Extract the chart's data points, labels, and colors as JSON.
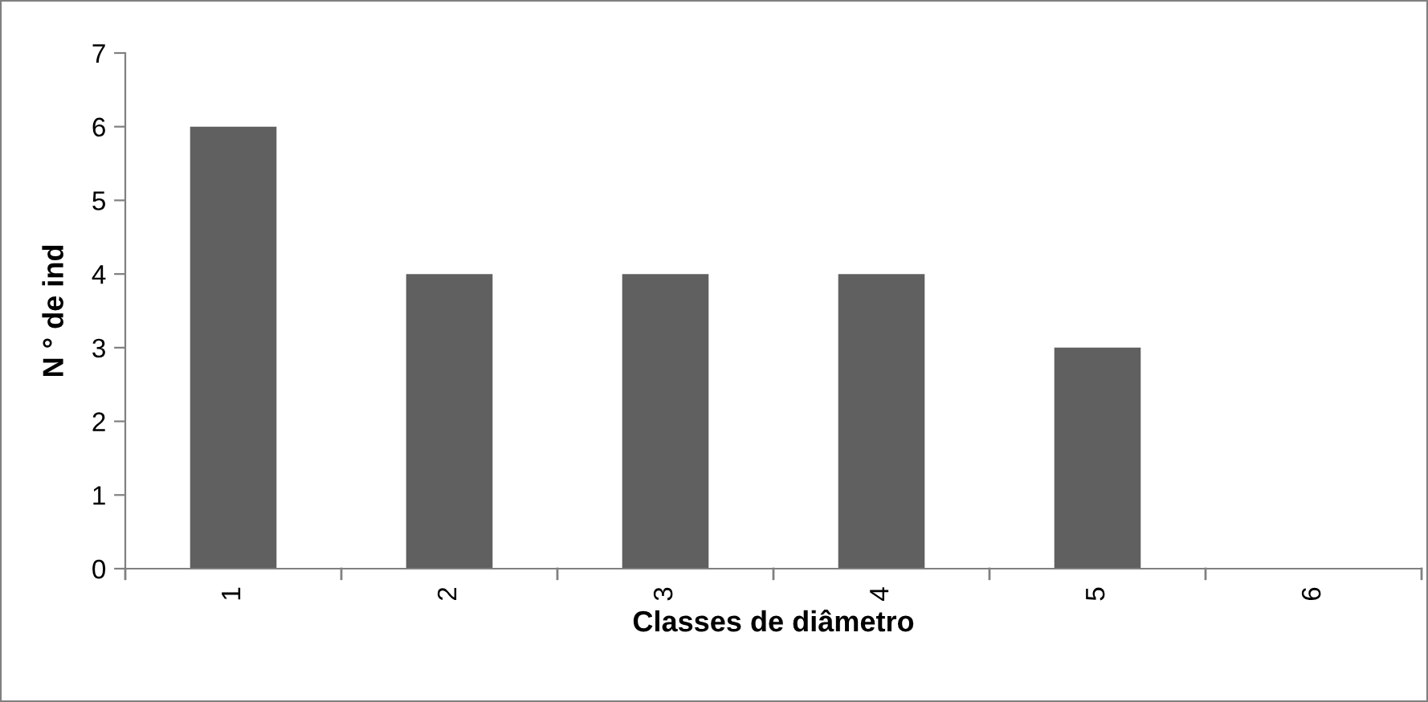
{
  "chart_data": {
    "type": "bar",
    "xlabel": "Classes de diâmetro",
    "ylabel": "N ° de ind",
    "categories": [
      "1",
      "2",
      "3",
      "4",
      "5",
      "6"
    ],
    "values": [
      6,
      4,
      4,
      4,
      3,
      0
    ],
    "color": "#606060",
    "ylim": [
      0,
      7
    ],
    "yticks": [
      0,
      1,
      2,
      3,
      4,
      5,
      6,
      7
    ],
    "grid": false
  }
}
